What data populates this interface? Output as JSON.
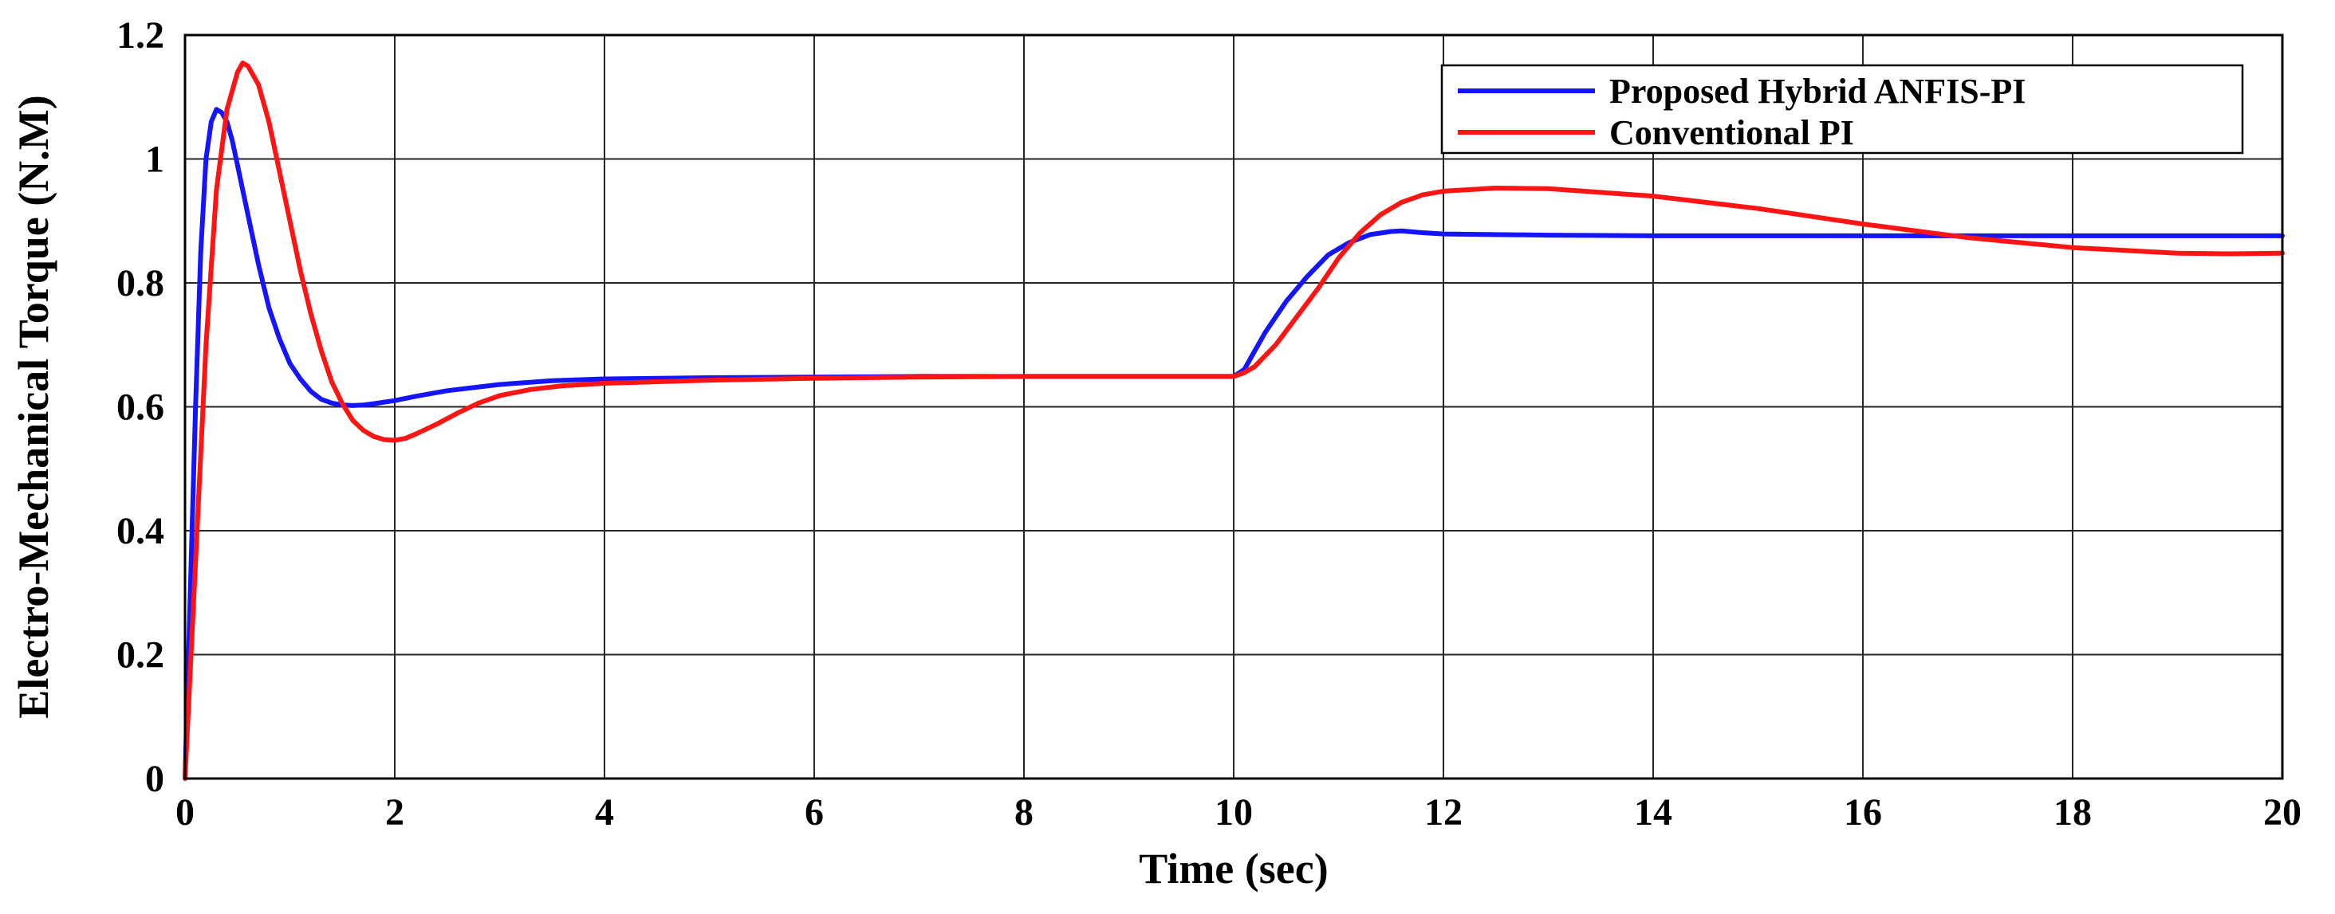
{
  "chart_data": {
    "type": "line",
    "title": "",
    "xlabel": "Time (sec)",
    "ylabel": "Electro-Mechanical Torque (N.M)",
    "xlim": [
      0,
      20
    ],
    "ylim": [
      0,
      1.2
    ],
    "xticks": [
      0,
      2,
      4,
      6,
      8,
      10,
      12,
      14,
      16,
      18,
      20
    ],
    "yticks": [
      0,
      0.2,
      0.4,
      0.6,
      0.8,
      1.0,
      1.2
    ],
    "xtick_labels": [
      "0",
      "2",
      "4",
      "6",
      "8",
      "10",
      "12",
      "14",
      "16",
      "18",
      "20"
    ],
    "ytick_labels": [
      "0",
      "0.2",
      "0.4",
      "0.6",
      "0.8",
      "1",
      "1.2"
    ],
    "grid": true,
    "legend_position": "top-right",
    "series": [
      {
        "name": "Proposed Hybrid ANFIS-PI",
        "color": "#1414ff",
        "x": [
          0,
          0.05,
          0.1,
          0.15,
          0.2,
          0.25,
          0.3,
          0.35,
          0.4,
          0.45,
          0.5,
          0.6,
          0.7,
          0.8,
          0.9,
          1.0,
          1.1,
          1.2,
          1.3,
          1.4,
          1.5,
          1.6,
          1.7,
          1.8,
          2.0,
          2.2,
          2.5,
          3.0,
          3.5,
          4.0,
          5.0,
          6.0,
          7.0,
          8.0,
          9.0,
          10.0,
          10.1,
          10.2,
          10.3,
          10.5,
          10.7,
          10.9,
          11.1,
          11.3,
          11.5,
          11.6,
          11.8,
          12.0,
          13.0,
          14.0,
          16.0,
          18.0,
          20.0
        ],
        "y": [
          0,
          0.3,
          0.6,
          0.85,
          1.0,
          1.06,
          1.08,
          1.075,
          1.06,
          1.03,
          0.99,
          0.91,
          0.83,
          0.76,
          0.71,
          0.67,
          0.645,
          0.625,
          0.612,
          0.606,
          0.603,
          0.602,
          0.603,
          0.605,
          0.61,
          0.617,
          0.626,
          0.636,
          0.642,
          0.645,
          0.647,
          0.648,
          0.649,
          0.649,
          0.649,
          0.649,
          0.66,
          0.69,
          0.72,
          0.77,
          0.81,
          0.845,
          0.865,
          0.878,
          0.883,
          0.884,
          0.881,
          0.879,
          0.877,
          0.876,
          0.876,
          0.876,
          0.876
        ]
      },
      {
        "name": "Conventional PI",
        "color": "#ff1414",
        "x": [
          0,
          0.1,
          0.2,
          0.3,
          0.4,
          0.5,
          0.55,
          0.6,
          0.7,
          0.8,
          0.9,
          1.0,
          1.1,
          1.2,
          1.3,
          1.4,
          1.5,
          1.6,
          1.7,
          1.8,
          1.9,
          2.0,
          2.1,
          2.2,
          2.4,
          2.6,
          2.8,
          3.0,
          3.3,
          3.6,
          4.0,
          5.0,
          6.0,
          7.0,
          8.0,
          9.0,
          10.0,
          10.1,
          10.2,
          10.4,
          10.6,
          10.8,
          11.0,
          11.2,
          11.4,
          11.6,
          11.8,
          12.0,
          12.5,
          13.0,
          14.0,
          15.0,
          16.0,
          17.0,
          18.0,
          19.0,
          19.5,
          20.0
        ],
        "y": [
          0,
          0.35,
          0.7,
          0.95,
          1.08,
          1.14,
          1.155,
          1.15,
          1.12,
          1.06,
          0.98,
          0.9,
          0.82,
          0.75,
          0.69,
          0.64,
          0.605,
          0.578,
          0.562,
          0.552,
          0.547,
          0.546,
          0.549,
          0.556,
          0.572,
          0.59,
          0.606,
          0.618,
          0.628,
          0.634,
          0.638,
          0.643,
          0.646,
          0.648,
          0.649,
          0.649,
          0.649,
          0.655,
          0.665,
          0.7,
          0.745,
          0.79,
          0.84,
          0.88,
          0.91,
          0.93,
          0.942,
          0.948,
          0.953,
          0.952,
          0.94,
          0.92,
          0.895,
          0.873,
          0.857,
          0.848,
          0.847,
          0.848
        ]
      }
    ]
  }
}
